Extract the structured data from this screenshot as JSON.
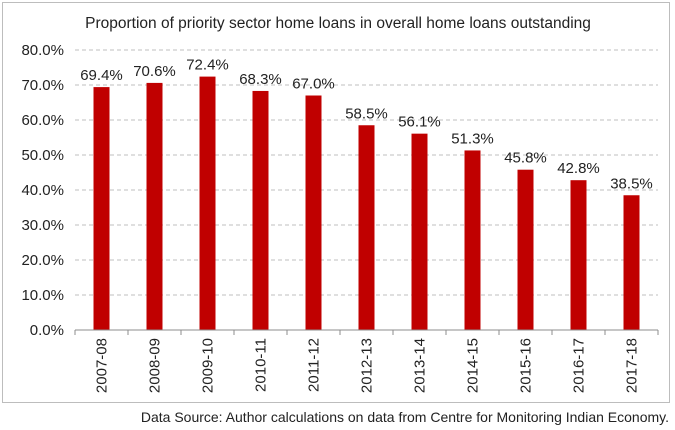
{
  "chart_data": {
    "type": "bar",
    "title": "Proportion of priority sector home loans in overall home loans outstanding",
    "xlabel": "",
    "ylabel": "",
    "categories": [
      "2007-08",
      "2008-09",
      "2009-10",
      "2010-11",
      "2011-12",
      "2012-13",
      "2013-14",
      "2014-15",
      "2015-16",
      "2016-17",
      "2017-18"
    ],
    "values": [
      69.4,
      70.6,
      72.4,
      68.3,
      67.0,
      58.5,
      56.1,
      51.3,
      45.8,
      42.8,
      38.5
    ],
    "value_labels": [
      "69.4%",
      "70.6%",
      "72.4%",
      "68.3%",
      "67.0%",
      "58.5%",
      "56.1%",
      "51.3%",
      "45.8%",
      "42.8%",
      "38.5%"
    ],
    "ylim": [
      0,
      80
    ],
    "yticks": [
      0,
      10,
      20,
      30,
      40,
      50,
      60,
      70,
      80
    ],
    "ytick_labels": [
      "0.0%",
      "10.0%",
      "20.0%",
      "30.0%",
      "40.0%",
      "50.0%",
      "60.0%",
      "70.0%",
      "80.0%"
    ],
    "grid": "horizontal-dashed",
    "legend": "none",
    "bar_color": "#c00000"
  },
  "source_note": "Data Source: Author calculations on data from Centre for Monitoring Indian Economy."
}
